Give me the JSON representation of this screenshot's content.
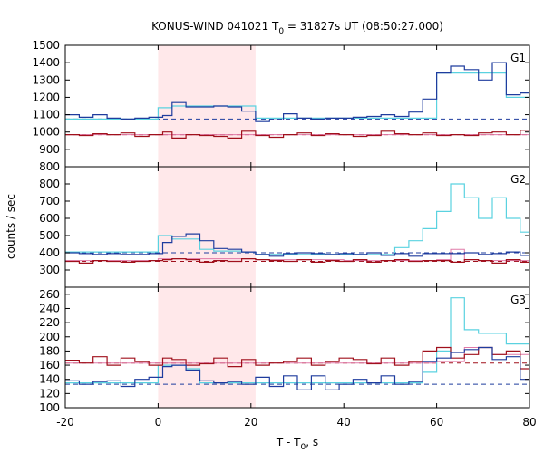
{
  "chart_data": {
    "type": "line",
    "title": "KONUS-WIND 041021 T",
    "title_sub": "0",
    "title_rest": " = 31827s UT (08:50:27.000)",
    "xlabel": "T - T",
    "xlabel_sub": "0",
    "xlabel_rest": ", s",
    "ylabel": "counts / sec",
    "xlim": [
      -20,
      80
    ],
    "x_ticks": [
      -20,
      0,
      20,
      40,
      60,
      80
    ],
    "x_tick_labels": [
      "-20",
      "0",
      "20",
      "40",
      "60",
      "80"
    ],
    "shaded_interval": [
      0,
      21
    ],
    "colors": {
      "blue": "#1f3c9e",
      "cyan": "#5ad2e0",
      "red": "#a0101c",
      "pink": "#e07aa8",
      "shade": "#ffe8ea"
    },
    "panels": [
      {
        "label": "G1",
        "ylim": [
          800,
          1500
        ],
        "y_ticks": [
          800,
          900,
          1000,
          1100,
          1200,
          1300,
          1400,
          1500
        ],
        "y_tick_labels": [
          "800",
          "900",
          "1000",
          "1100",
          "1200",
          "1300",
          "1400",
          "1500"
        ],
        "blue_bg": 1075,
        "red_bg": 985,
        "blue_step": {
          "x": [
            -20,
            -17,
            -14,
            -11,
            -8,
            -5,
            -2,
            1,
            3,
            6,
            9,
            12,
            15,
            18,
            21,
            24,
            27,
            30,
            33,
            36,
            39,
            42,
            45,
            48,
            51,
            54,
            57,
            60,
            63,
            66,
            69,
            72,
            75,
            78
          ],
          "y": [
            1100,
            1085,
            1100,
            1080,
            1075,
            1080,
            1085,
            1095,
            1170,
            1145,
            1145,
            1150,
            1145,
            1120,
            1060,
            1070,
            1105,
            1080,
            1075,
            1080,
            1080,
            1085,
            1090,
            1100,
            1090,
            1115,
            1190,
            1340,
            1380,
            1360,
            1300,
            1400,
            1215,
            1225
          ]
        },
        "cyan_step": {
          "x": [
            -20,
            -17,
            -14,
            -11,
            -8,
            -5,
            -2,
            0,
            3,
            6,
            9,
            12,
            15,
            18,
            21,
            24,
            27,
            30,
            33,
            36,
            39,
            42,
            45,
            48,
            51,
            54,
            57,
            60,
            63,
            66,
            69,
            72,
            75,
            78
          ],
          "y": [
            1075,
            1075,
            1075,
            1075,
            1075,
            1075,
            1075,
            1140,
            1150,
            1150,
            1150,
            1150,
            1150,
            1150,
            1080,
            1080,
            1080,
            1080,
            1080,
            1080,
            1080,
            1080,
            1080,
            1080,
            1080,
            1080,
            1080,
            1340,
            1340,
            1340,
            1340,
            1340,
            1200,
            1200
          ]
        },
        "red_step": {
          "x": [
            -20,
            -17,
            -14,
            -11,
            -8,
            -5,
            -2,
            1,
            3,
            6,
            9,
            12,
            15,
            18,
            21,
            24,
            27,
            30,
            33,
            36,
            39,
            42,
            45,
            48,
            51,
            54,
            57,
            60,
            63,
            66,
            69,
            72,
            75,
            78
          ],
          "y": [
            985,
            980,
            990,
            985,
            995,
            975,
            985,
            1000,
            965,
            985,
            980,
            975,
            965,
            1005,
            980,
            970,
            985,
            995,
            980,
            990,
            985,
            975,
            980,
            1005,
            990,
            985,
            995,
            980,
            985,
            980,
            995,
            1000,
            985,
            1010
          ]
        },
        "pink_step": {
          "x": [
            -20,
            80
          ],
          "y": [
            985,
            985
          ]
        }
      },
      {
        "label": "G2",
        "ylim": [
          200,
          900
        ],
        "y_ticks": [
          200,
          300,
          400,
          500,
          600,
          700,
          800,
          900
        ],
        "y_tick_labels": [
          "",
          "300",
          "400",
          "500",
          "600",
          "700",
          "800",
          ""
        ],
        "blue_bg": 400,
        "red_bg": 350,
        "blue_step": {
          "x": [
            -20,
            -17,
            -14,
            -11,
            -8,
            -5,
            -2,
            1,
            3,
            6,
            9,
            12,
            15,
            18,
            21,
            24,
            27,
            30,
            33,
            36,
            39,
            42,
            45,
            48,
            51,
            54,
            57,
            60,
            63,
            66,
            69,
            72,
            75,
            78
          ],
          "y": [
            400,
            395,
            390,
            395,
            390,
            390,
            395,
            460,
            495,
            510,
            470,
            425,
            420,
            405,
            390,
            380,
            395,
            400,
            395,
            390,
            395,
            390,
            400,
            385,
            395,
            380,
            395,
            395,
            395,
            400,
            390,
            395,
            405,
            385
          ]
        },
        "cyan_step": {
          "x": [
            -20,
            -17,
            -14,
            -11,
            -8,
            -5,
            -2,
            0,
            3,
            6,
            9,
            12,
            15,
            18,
            21,
            24,
            27,
            30,
            33,
            36,
            39,
            42,
            45,
            48,
            51,
            54,
            57,
            60,
            63,
            66,
            69,
            72,
            75,
            78
          ],
          "y": [
            405,
            405,
            405,
            405,
            405,
            405,
            405,
            500,
            480,
            480,
            420,
            410,
            410,
            405,
            390,
            390,
            390,
            390,
            390,
            390,
            390,
            390,
            390,
            390,
            430,
            470,
            540,
            640,
            800,
            720,
            600,
            720,
            600,
            520
          ]
        },
        "red_step": {
          "x": [
            -20,
            -17,
            -14,
            -11,
            -8,
            -5,
            -2,
            1,
            3,
            6,
            9,
            12,
            15,
            18,
            21,
            24,
            27,
            30,
            33,
            36,
            39,
            42,
            45,
            48,
            51,
            54,
            57,
            60,
            63,
            66,
            69,
            72,
            75,
            78
          ],
          "y": [
            350,
            340,
            355,
            350,
            345,
            350,
            355,
            360,
            365,
            360,
            345,
            355,
            350,
            365,
            360,
            355,
            350,
            360,
            345,
            355,
            350,
            360,
            345,
            355,
            360,
            350,
            355,
            355,
            345,
            360,
            355,
            340,
            360,
            345
          ]
        },
        "pink_step": {
          "x": [
            -20,
            0,
            21,
            40,
            60,
            63,
            66,
            69,
            80
          ],
          "y": [
            355,
            365,
            360,
            355,
            360,
            420,
            360,
            355,
            355
          ]
        }
      },
      {
        "label": "G3",
        "ylim": [
          100,
          270
        ],
        "y_ticks": [
          100,
          120,
          140,
          160,
          180,
          200,
          220,
          240,
          260
        ],
        "y_tick_labels": [
          "100",
          "120",
          "140",
          "160",
          "180",
          "200",
          "220",
          "240",
          "260"
        ],
        "blue_bg": 133,
        "red_bg": 163,
        "blue_step": {
          "x": [
            -20,
            -17,
            -14,
            -11,
            -8,
            -5,
            -2,
            1,
            3,
            6,
            9,
            12,
            15,
            18,
            21,
            24,
            27,
            30,
            33,
            36,
            39,
            42,
            45,
            48,
            51,
            54,
            57,
            60,
            63,
            66,
            69,
            72,
            75,
            78
          ],
          "y": [
            138,
            133,
            137,
            138,
            130,
            140,
            143,
            158,
            160,
            153,
            138,
            135,
            137,
            133,
            143,
            130,
            145,
            125,
            145,
            125,
            133,
            140,
            135,
            145,
            133,
            137,
            165,
            170,
            178,
            182,
            185,
            168,
            172,
            140
          ]
        },
        "cyan_step": {
          "x": [
            -20,
            -17,
            -14,
            -11,
            -8,
            -5,
            -2,
            0,
            3,
            6,
            9,
            12,
            15,
            18,
            21,
            24,
            27,
            30,
            33,
            36,
            39,
            42,
            45,
            48,
            51,
            54,
            57,
            60,
            63,
            66,
            69,
            72,
            75,
            78
          ],
          "y": [
            135,
            135,
            135,
            135,
            135,
            135,
            135,
            160,
            160,
            155,
            135,
            135,
            135,
            135,
            135,
            135,
            135,
            135,
            135,
            135,
            135,
            135,
            135,
            135,
            135,
            135,
            150,
            180,
            255,
            210,
            205,
            205,
            190,
            190
          ]
        },
        "red_step": {
          "x": [
            -20,
            -17,
            -14,
            -11,
            -8,
            -5,
            -2,
            1,
            3,
            6,
            9,
            12,
            15,
            18,
            21,
            24,
            27,
            30,
            33,
            36,
            39,
            42,
            45,
            48,
            51,
            54,
            57,
            60,
            63,
            66,
            69,
            72,
            75,
            78
          ],
          "y": [
            167,
            163,
            172,
            160,
            170,
            165,
            160,
            170,
            168,
            160,
            162,
            170,
            158,
            168,
            160,
            163,
            165,
            170,
            160,
            165,
            170,
            168,
            162,
            170,
            160,
            165,
            180,
            185,
            170,
            175,
            185,
            175,
            180,
            155
          ]
        },
        "pink_step": {
          "x": [
            -20,
            0,
            21,
            40,
            57,
            60,
            66,
            72,
            80
          ],
          "y": [
            163,
            163,
            163,
            163,
            163,
            165,
            185,
            175,
            175
          ]
        }
      }
    ]
  }
}
